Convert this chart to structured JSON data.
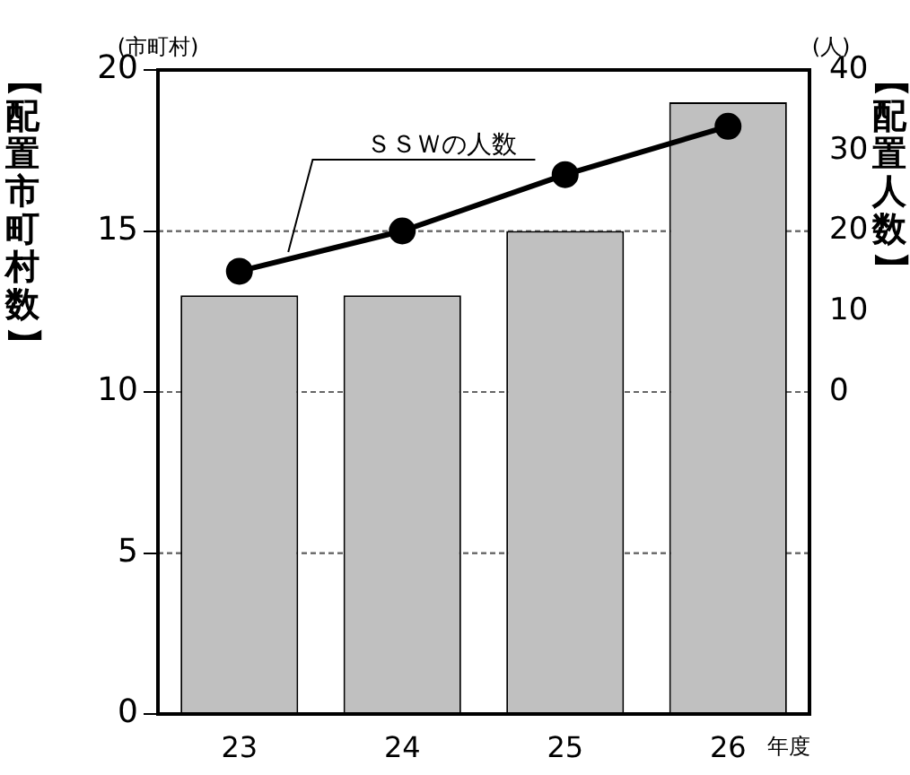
{
  "chart_data": {
    "type": "bar",
    "categories": [
      "23",
      "24",
      "25",
      "26"
    ],
    "xlabel": "年度",
    "ylabel": "【配置市町村数】",
    "y2label": "【配置人数】",
    "series": [
      {
        "color": "#c0c0c0",
        "values": [
          13,
          13,
          15,
          19
        ]
      },
      {
        "type": "line",
        "axis": "y2",
        "color": "#000000",
        "values": [
          15,
          20,
          27,
          33
        ]
      }
    ],
    "ylim": [
      0,
      20
    ],
    "yticks": [
      0,
      5,
      10,
      15,
      20
    ],
    "y2lim": [
      -40,
      40
    ],
    "y2ticks": [
      0,
      10,
      20,
      30,
      40
    ],
    "grid": "y",
    "legend": false,
    "marker": "circle",
    "line_style": "solid",
    "annotations": [
      "ＳＳＷの人数",
      "(市町村)",
      "(人)"
    ]
  }
}
